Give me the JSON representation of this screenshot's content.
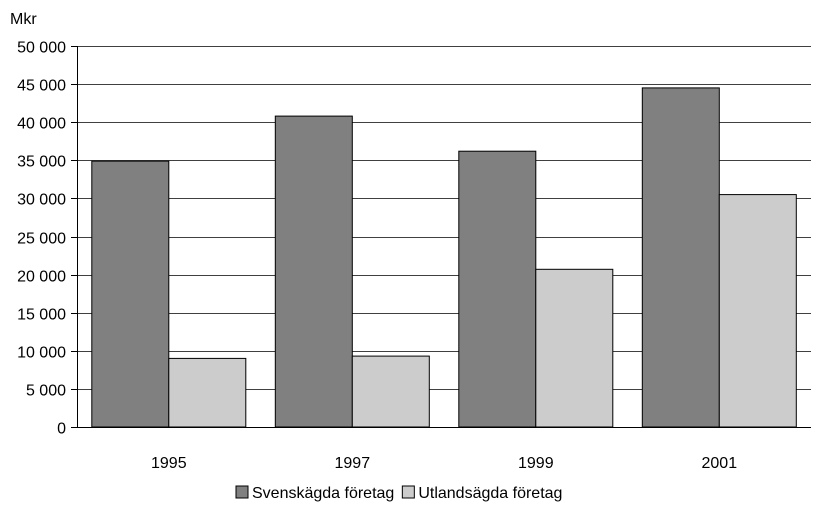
{
  "chart_data": {
    "type": "bar",
    "y_unit_label": "Mkr",
    "categories": [
      "1995",
      "1997",
      "1999",
      "2001"
    ],
    "series": [
      {
        "name": "Svenskägda företag",
        "values": [
          34900,
          40800,
          36200,
          44500
        ],
        "color": "#808080"
      },
      {
        "name": "Utlandsägda företag",
        "values": [
          9000,
          9300,
          20700,
          30500
        ],
        "color": "#cccccc"
      }
    ],
    "ylim": [
      0,
      50000
    ],
    "y_ticks": [
      0,
      5000,
      10000,
      15000,
      20000,
      25000,
      30000,
      35000,
      40000,
      45000,
      50000
    ],
    "y_tick_labels": [
      "0",
      "5 000",
      "10 000",
      "15 000",
      "20 000",
      "25 000",
      "30 000",
      "35 000",
      "40 000",
      "45 000",
      "50 000"
    ],
    "grid": true,
    "legend_position": "bottom-center"
  }
}
